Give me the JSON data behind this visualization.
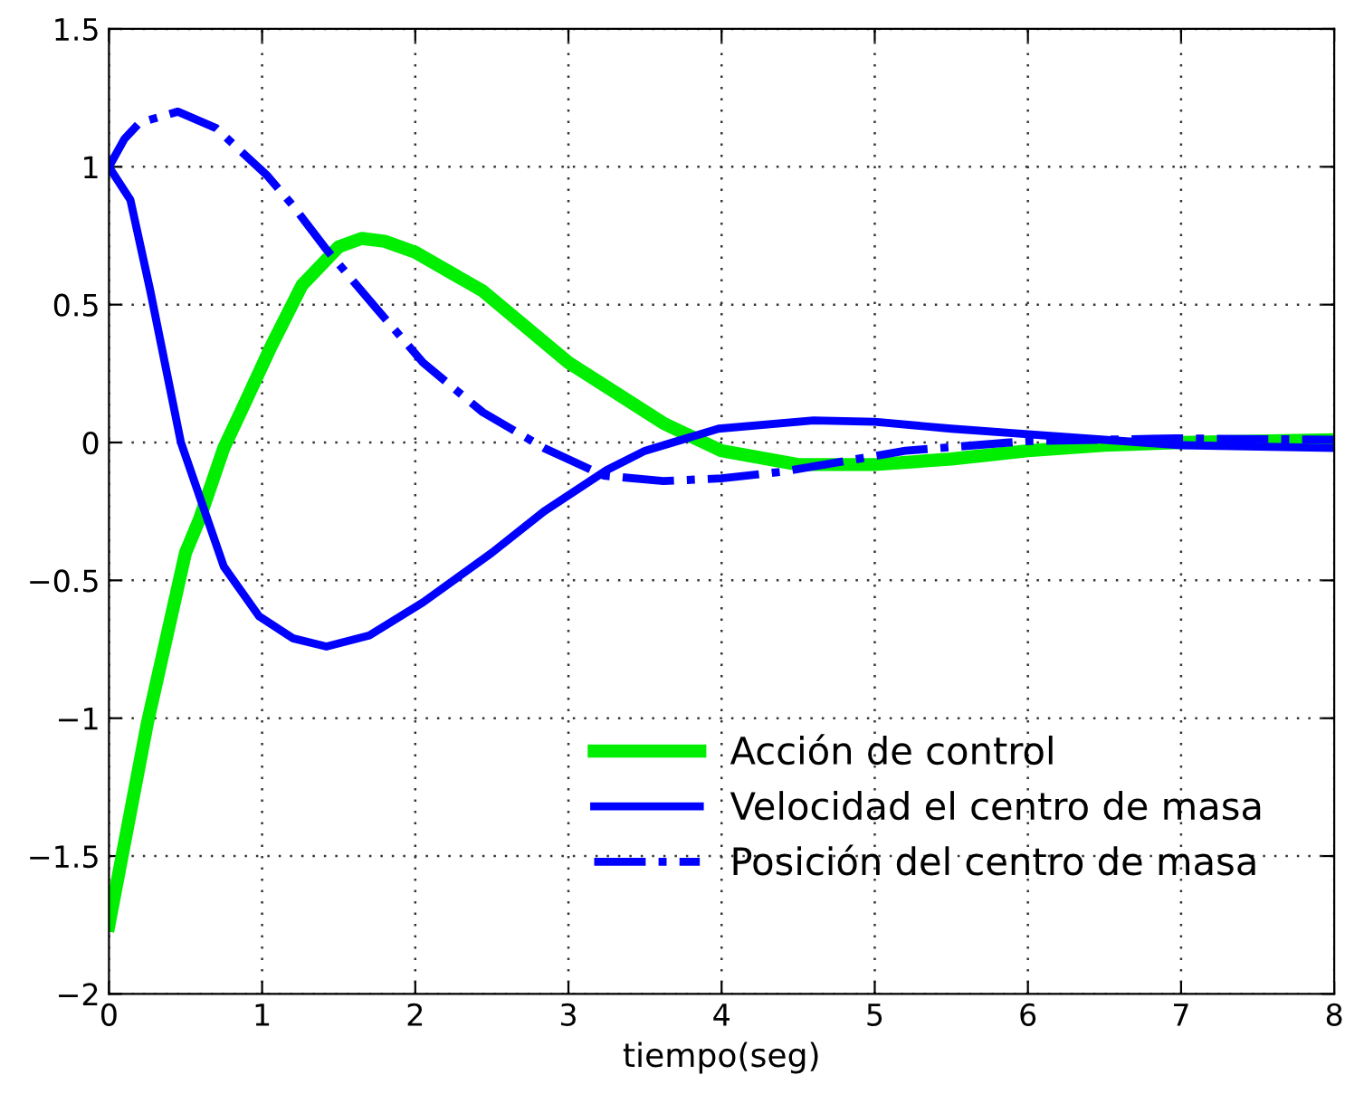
{
  "chart_data": {
    "type": "line",
    "xlabel": "tiempo(seg)",
    "xlim": [
      0,
      8
    ],
    "xticks": [
      0,
      1,
      2,
      3,
      4,
      5,
      6,
      7,
      8
    ],
    "ylim": [
      -2,
      1.5
    ],
    "yticks": [
      {
        "value": -2,
        "label": "−2"
      },
      {
        "value": -1.5,
        "label": "−1.5"
      },
      {
        "value": -1,
        "label": "−1"
      },
      {
        "value": -0.5,
        "label": "−0.5"
      },
      0,
      0.5,
      1,
      1.5
    ],
    "grid": true,
    "legend": "lower right",
    "series": [
      {
        "name": "Acción de control",
        "color": "#00ee00",
        "line_style": "solid",
        "x": [
          0,
          0.25,
          0.5,
          0.59,
          0.75,
          0.86,
          1.06,
          1.26,
          1.5,
          1.65,
          1.8,
          2.0,
          2.44,
          3.0,
          3.62,
          4.0,
          4.5,
          5.0,
          5.5,
          6.0,
          6.5,
          7.0,
          8.0
        ],
        "values": [
          -1.75,
          -1.02,
          -0.4,
          -0.28,
          -0.02,
          0.11,
          0.35,
          0.57,
          0.71,
          0.74,
          0.73,
          0.69,
          0.55,
          0.29,
          0.07,
          -0.03,
          -0.08,
          -0.08,
          -0.06,
          -0.03,
          -0.01,
          0.0,
          0.01
        ]
      },
      {
        "name": "Velocidad el centro de masa",
        "color": "#0000ff",
        "line_style": "solid",
        "x": [
          0,
          0.14,
          0.27,
          0.47,
          0.75,
          0.98,
          1.2,
          1.42,
          1.7,
          2.05,
          2.5,
          2.84,
          3.25,
          3.5,
          3.98,
          4.6,
          5.0,
          5.5,
          6.0,
          6.5,
          7.0,
          8.0
        ],
        "values": [
          1,
          0.88,
          0.55,
          0,
          -0.45,
          -0.63,
          -0.71,
          -0.74,
          -0.7,
          -0.58,
          -0.4,
          -0.25,
          -0.1,
          -0.03,
          0.05,
          0.08,
          0.075,
          0.05,
          0.03,
          0.01,
          -0.01,
          -0.02
        ]
      },
      {
        "name": "Posición del centro de masa",
        "color": "#0000ff",
        "line_style": "dashdot",
        "x": [
          0,
          0.1,
          0.2,
          0.45,
          0.7,
          1.03,
          1.2,
          1.42,
          1.74,
          2.05,
          2.44,
          2.84,
          3.23,
          3.62,
          4.0,
          4.41,
          5.2,
          5.99,
          6.97,
          8.0
        ],
        "values": [
          1,
          1.1,
          1.16,
          1.2,
          1.14,
          0.97,
          0.86,
          0.7,
          0.49,
          0.29,
          0.11,
          -0.02,
          -0.12,
          -0.14,
          -0.13,
          -0.105,
          -0.03,
          0.005,
          0.015,
          0.01
        ]
      }
    ]
  }
}
